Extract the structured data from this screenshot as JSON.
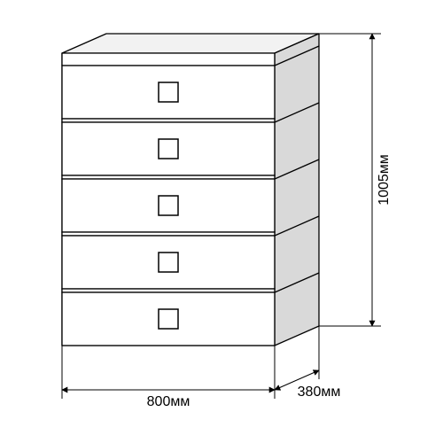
{
  "diagram": {
    "type": "technical-drawing",
    "colors": {
      "background": "#ffffff",
      "stroke": "#000000",
      "shading_light": "#f2f2f2",
      "shading_dark": "#d9d9d9"
    },
    "stroke_width": {
      "main": 1.3,
      "handle": 1.5,
      "dim": 1
    },
    "font": {
      "label_size": 16,
      "family": "Arial, sans-serif"
    },
    "drawers": {
      "count": 5
    },
    "dimensions": {
      "width": {
        "value": "800мм"
      },
      "depth": {
        "value": "380мм"
      },
      "height": {
        "value": "1005мм"
      }
    }
  }
}
